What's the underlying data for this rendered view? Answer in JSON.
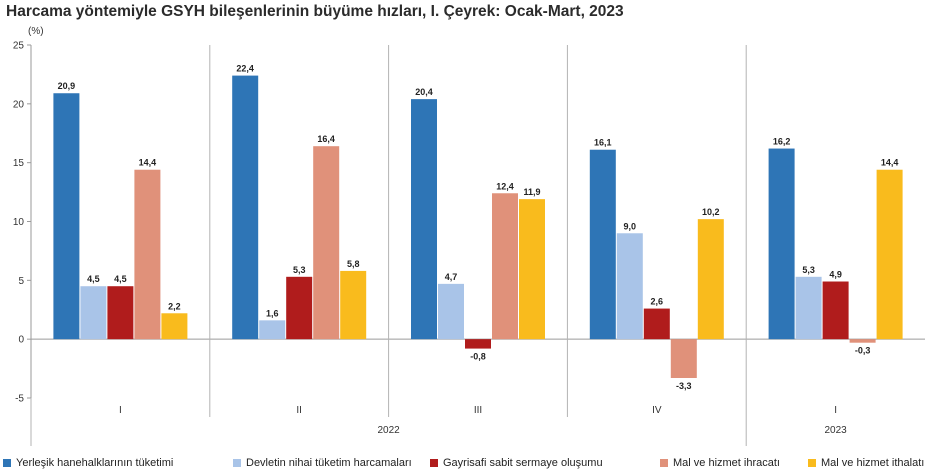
{
  "title": "Harcama yöntemiyle GSYH bileşenlerinin büyüme hızları, I. Çeyrek: Ocak-Mart, 2023",
  "chart_data": {
    "type": "bar",
    "ylabel": "(%)",
    "ylim": [
      -5,
      25
    ],
    "yticks": [
      -5,
      0,
      5,
      10,
      15,
      20,
      25
    ],
    "grid": false,
    "legend_position": "bottom",
    "categories": [
      "I",
      "II",
      "III",
      "IV",
      "I"
    ],
    "year_groups": [
      {
        "label": "2022",
        "categories": [
          0,
          3
        ]
      },
      {
        "label": "2023",
        "categories": [
          4,
          4
        ]
      }
    ],
    "series": [
      {
        "name": "Yerleşik hanehalklarının tüketimi",
        "color": "#2e75b6",
        "values": [
          20.9,
          22.4,
          20.4,
          16.1,
          16.2
        ],
        "labels": [
          "20,9",
          "22,4",
          "20,4",
          "16,1",
          "16,2"
        ]
      },
      {
        "name": "Devletin nihai tüketim harcamaları",
        "color": "#a9c4e8",
        "values": [
          4.5,
          1.6,
          4.7,
          9.0,
          5.3
        ],
        "labels": [
          "4,5",
          "1,6",
          "4,7",
          "9,0",
          "5,3"
        ]
      },
      {
        "name": "Gayrisafi sabit sermaye oluşumu",
        "color": "#b01c1c",
        "values": [
          4.5,
          5.3,
          -0.8,
          2.6,
          4.9
        ],
        "labels": [
          "4,5",
          "5,3",
          "-0,8",
          "2,6",
          "4,9"
        ]
      },
      {
        "name": "Mal ve hizmet ihracatı",
        "color": "#e0917a",
        "values": [
          14.4,
          16.4,
          12.4,
          -3.3,
          -0.3
        ],
        "labels": [
          "14,4",
          "16,4",
          "12,4",
          "-3,3",
          "-0,3"
        ]
      },
      {
        "name": "Mal ve hizmet ithalatı",
        "color": "#f9bb1d",
        "values": [
          2.2,
          5.8,
          11.9,
          10.2,
          14.4
        ],
        "labels": [
          "2,2",
          "5,8",
          "11,9",
          "10,2",
          "14,4"
        ]
      }
    ]
  }
}
